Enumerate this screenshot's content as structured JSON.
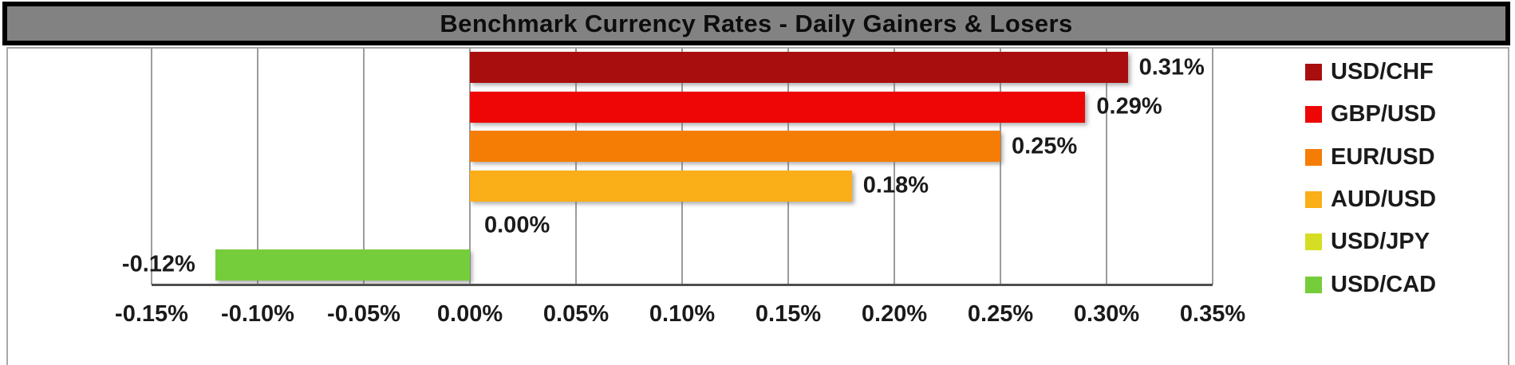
{
  "title": {
    "text": "Benchmark Currency Rates - Daily Gainers & Losers"
  },
  "chart_data": {
    "type": "bar",
    "orientation": "horizontal",
    "title": "Benchmark Currency Rates - Daily Gainers & Losers",
    "categories": [
      "USD/CHF",
      "GBP/USD",
      "EUR/USD",
      "AUD/USD",
      "USD/JPY",
      "USD/CAD"
    ],
    "values": [
      0.31,
      0.29,
      0.25,
      0.18,
      0.0,
      -0.12
    ],
    "data_labels": [
      "0.31%",
      "0.29%",
      "0.25%",
      "0.18%",
      "0.00%",
      "-0.12%"
    ],
    "bar_colors": [
      "#A90E0E",
      "#EE0606",
      "#F57D06",
      "#FAAE18",
      "#D6DE23",
      "#76CD3B"
    ],
    "xlabel": "",
    "ylabel": "",
    "xlim": [
      -0.15,
      0.35
    ],
    "x_tick_values": [
      -0.15,
      -0.1,
      -0.05,
      0.0,
      0.05,
      0.1,
      0.15,
      0.2,
      0.25,
      0.3,
      0.35
    ],
    "x_tick_labels": [
      "-0.15%",
      "-0.10%",
      "-0.05%",
      "0.00%",
      "0.05%",
      "0.10%",
      "0.15%",
      "0.20%",
      "0.25%",
      "0.30%",
      "0.35%"
    ],
    "grid": "vertical",
    "legend_position": "right"
  },
  "legend": {
    "items": [
      {
        "label": "USD/CHF",
        "color": "#A90E0E"
      },
      {
        "label": "GBP/USD",
        "color": "#EE0606"
      },
      {
        "label": "EUR/USD",
        "color": "#F57D06"
      },
      {
        "label": "AUD/USD",
        "color": "#FAAE18"
      },
      {
        "label": "USD/JPY",
        "color": "#D6DE23"
      },
      {
        "label": "USD/CAD",
        "color": "#76CD3B"
      }
    ]
  },
  "colors": {
    "title_bar_fill": "#828282",
    "title_bar_border": "#000000",
    "chart_frame": "#A8A8A8",
    "gridline": "#9C9C9C",
    "axis_line": "#4F4F4F",
    "label_text": "#1A1A1A"
  }
}
